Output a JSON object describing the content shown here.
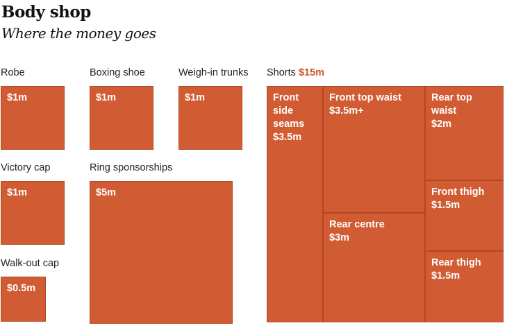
{
  "chart_data": {
    "type": "treemap",
    "title": "Body shop",
    "subtitle": "Where the money goes",
    "unit": "$m",
    "standalone": [
      {
        "id": "robe",
        "category": "Robe",
        "value": 1,
        "label": "$1m"
      },
      {
        "id": "boxing-shoe",
        "category": "Boxing shoe",
        "value": 1,
        "label": "$1m"
      },
      {
        "id": "weigh-in-trunks",
        "category": "Weigh-in trunks",
        "value": 1,
        "label": "$1m"
      },
      {
        "id": "victory-cap",
        "category": "Victory cap",
        "value": 1,
        "label": "$1m"
      },
      {
        "id": "ring-sponsorships",
        "category": "Ring sponsorships",
        "value": 5,
        "label": "$5m"
      },
      {
        "id": "walk-out-cap",
        "category": "Walk-out cap",
        "value": 0.5,
        "label": "$0.5m"
      }
    ],
    "shorts": {
      "category": "Shorts",
      "total_label": "$15m",
      "total": 15,
      "parts": [
        {
          "id": "front-side-seams",
          "name_lines": [
            "Front",
            "side",
            "seams"
          ],
          "value": 3.5,
          "label": "$3.5m"
        },
        {
          "id": "front-top-waist",
          "name_lines": [
            "Front top waist"
          ],
          "value": 3.5,
          "label": "$3.5m+"
        },
        {
          "id": "rear-top-waist",
          "name_lines": [
            "Rear top",
            "waist"
          ],
          "value": 2,
          "label": "$2m"
        },
        {
          "id": "front-thigh",
          "name_lines": [
            "Front thigh"
          ],
          "value": 1.5,
          "label": "$1.5m"
        },
        {
          "id": "rear-centre",
          "name_lines": [
            "Rear centre"
          ],
          "value": 3,
          "label": "$3m"
        },
        {
          "id": "rear-thigh",
          "name_lines": [
            "Rear thigh"
          ],
          "value": 1.5,
          "label": "$1.5m"
        }
      ]
    },
    "colors": {
      "box": "#d15b33",
      "accent": "#c9552f",
      "text": "#ffffff"
    }
  }
}
